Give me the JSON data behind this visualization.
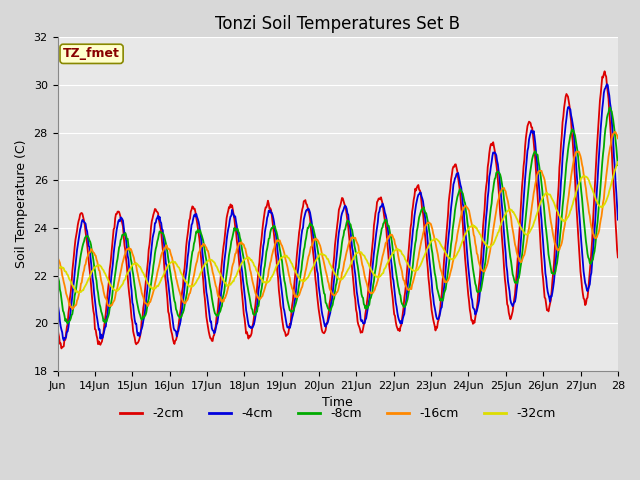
{
  "title": "Tonzi Soil Temperatures Set B",
  "xlabel": "Time",
  "ylabel": "Soil Temperature (C)",
  "ylim": [
    18,
    32
  ],
  "yticks": [
    18,
    20,
    22,
    24,
    26,
    28,
    30,
    32
  ],
  "fig_bg_color": "#d8d8d8",
  "plot_bg_color": "#e8e8e8",
  "series": [
    {
      "label": "-2cm",
      "color": "#dd0000",
      "lw": 1.3
    },
    {
      "label": "-4cm",
      "color": "#0000dd",
      "lw": 1.3
    },
    {
      "label": "-8cm",
      "color": "#00aa00",
      "lw": 1.3
    },
    {
      "label": "-16cm",
      "color": "#ff8800",
      "lw": 1.3
    },
    {
      "label": "-32cm",
      "color": "#dddd00",
      "lw": 1.3
    }
  ],
  "annotation_text": "TZ_fmet",
  "annotation_color": "#880000",
  "annotation_bg": "#ffffcc",
  "annotation_border": "#888800",
  "n_days": 15,
  "start_day": 13,
  "points_per_day": 48,
  "title_fontsize": 12,
  "axis_fontsize": 9,
  "tick_fontsize": 8,
  "legend_fontsize": 9,
  "grid_color": "#ffffff",
  "grid_lw": 0.8
}
